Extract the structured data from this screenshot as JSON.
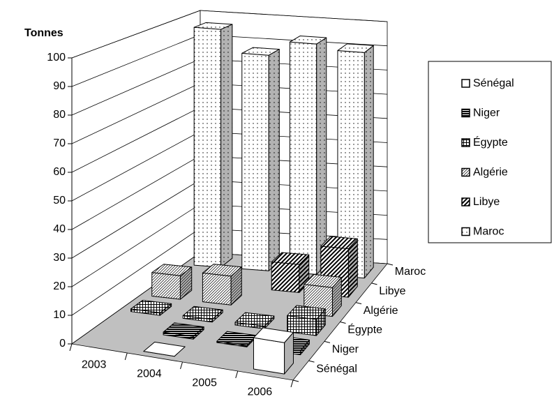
{
  "chart_data": {
    "type": "bar3d",
    "ylabel": "Tonnes",
    "categories": [
      "2003",
      "2004",
      "2005",
      "2006"
    ],
    "series": [
      {
        "name": "Sénégal",
        "color": "#ffffff",
        "pattern": "solid",
        "values": [
          null,
          0,
          null,
          11
        ]
      },
      {
        "name": "Niger",
        "color": "#ffffff",
        "pattern": "horizontal",
        "values": [
          null,
          1,
          0.5,
          1.5
        ]
      },
      {
        "name": "Égypte",
        "color": "#ffffff",
        "pattern": "grid",
        "values": [
          1,
          1,
          1,
          6
        ]
      },
      {
        "name": "Algérie",
        "color": "#ffffff",
        "pattern": "light-diagonal",
        "values": [
          9,
          11,
          null,
          11
        ]
      },
      {
        "name": "Libye",
        "color": "#ffffff",
        "pattern": "bold-diagonal",
        "values": [
          null,
          null,
          11,
          19
        ]
      },
      {
        "name": "Maroc",
        "color": "#ffffff",
        "pattern": "dots",
        "values": [
          96,
          87,
          93,
          91
        ]
      }
    ],
    "ylim": [
      0,
      100
    ],
    "yticks": [
      0,
      10,
      20,
      30,
      40,
      50,
      60,
      70,
      80,
      90,
      100
    ],
    "grid": true,
    "floor_color": "#c0c0c0",
    "legend": "right"
  }
}
